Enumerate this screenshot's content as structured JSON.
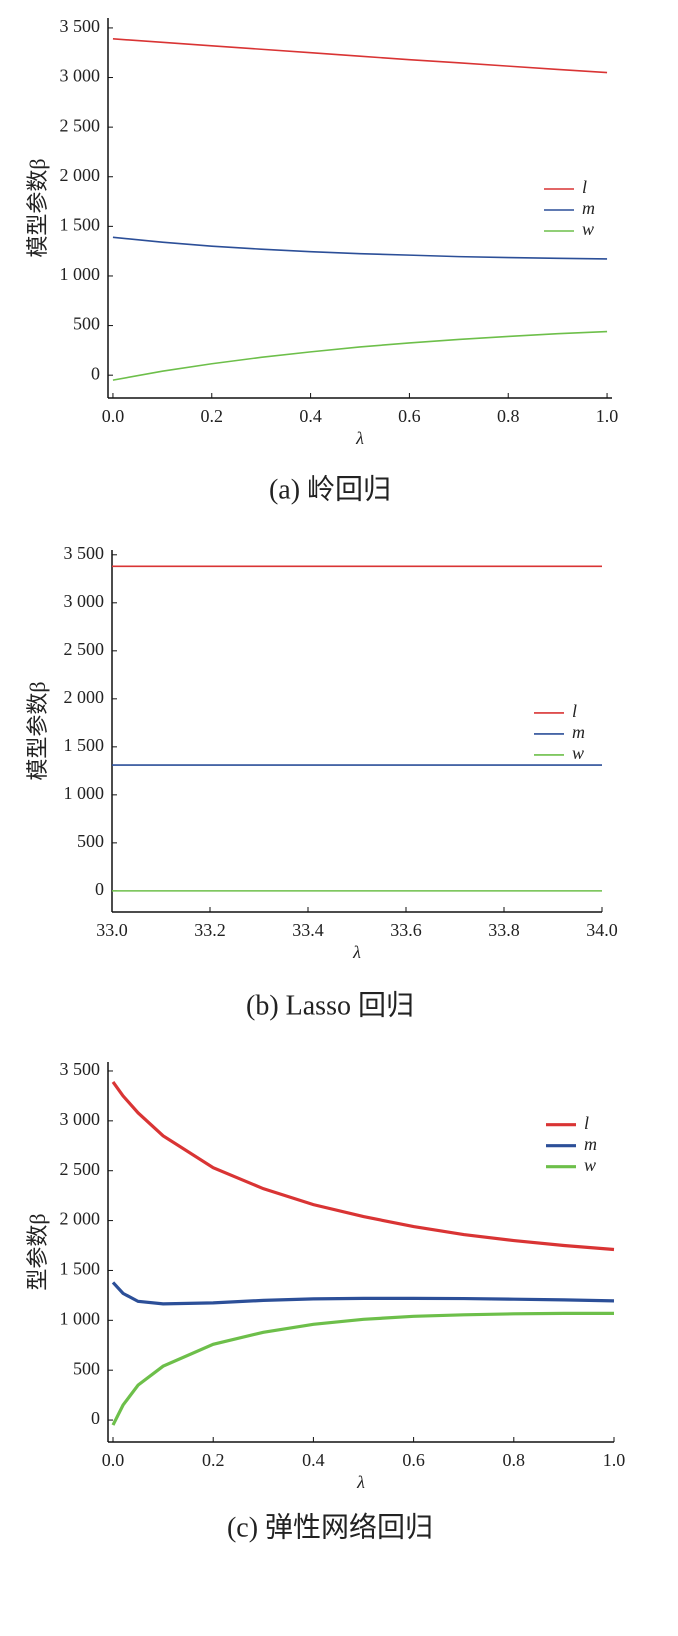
{
  "chart_data": [
    {
      "type": "line",
      "caption": "(a) 岭回归",
      "xlabel": "λ",
      "ylabel": "模型参数β",
      "x": [
        0,
        0.1,
        0.2,
        0.3,
        0.4,
        0.5,
        0.6,
        0.7,
        0.8,
        0.9,
        1.0
      ],
      "series": [
        {
          "name": "l",
          "color": "#d93434",
          "values": [
            3390,
            3355,
            3320,
            3285,
            3250,
            3215,
            3180,
            3148,
            3115,
            3082,
            3050
          ]
        },
        {
          "name": "m",
          "color": "#2c4f98",
          "values": [
            1390,
            1340,
            1300,
            1270,
            1245,
            1225,
            1210,
            1195,
            1185,
            1178,
            1172
          ]
        },
        {
          "name": "w",
          "color": "#6dbf4a",
          "values": [
            -50,
            40,
            115,
            180,
            235,
            285,
            325,
            360,
            390,
            418,
            440
          ]
        }
      ],
      "xlim": [
        -0.01,
        1.01
      ],
      "xticks": [
        {
          "value": 0,
          "label": "0.0"
        },
        0.2,
        0.4,
        0.6,
        0.8,
        {
          "value": 1,
          "label": "1.0"
        }
      ],
      "ylim": [
        -230,
        3600
      ],
      "yticks": [
        0,
        500,
        {
          "value": 1000,
          "label": "1 000"
        },
        {
          "value": 1500,
          "label": "1 500"
        },
        {
          "value": 2000,
          "label": "2 000"
        },
        {
          "value": 2500,
          "label": "2 500"
        },
        {
          "value": 3000,
          "label": "3 000"
        },
        {
          "value": 3500,
          "label": "3 500"
        }
      ],
      "legend": "center right",
      "linewidth": 1.6
    },
    {
      "type": "line",
      "caption": "(b) Lasso 回归",
      "xlabel": "λ",
      "ylabel": "模型参数β",
      "x": [
        33,
        34
      ],
      "series": [
        {
          "name": "l",
          "color": "#d93434",
          "values": [
            3380,
            3380
          ]
        },
        {
          "name": "m",
          "color": "#2c4f98",
          "values": [
            1310,
            1310
          ]
        },
        {
          "name": "w",
          "color": "#6dbf4a",
          "values": [
            0,
            0
          ]
        }
      ],
      "xlim": [
        33,
        34
      ],
      "xticks": [
        {
          "value": 33,
          "label": "33.0"
        },
        33.2,
        33.4,
        33.6,
        33.8,
        {
          "value": 34,
          "label": "34.0"
        }
      ],
      "ylim": [
        -220,
        3550
      ],
      "yticks": [
        0,
        500,
        {
          "value": 1000,
          "label": "1 000"
        },
        {
          "value": 1500,
          "label": "1 500"
        },
        {
          "value": 2000,
          "label": "2 000"
        },
        {
          "value": 2500,
          "label": "2 500"
        },
        {
          "value": 3000,
          "label": "3 000"
        },
        {
          "value": 3500,
          "label": "3 500"
        }
      ],
      "legend": "center right",
      "linewidth": 1.6
    },
    {
      "type": "line",
      "caption": "(c) 弹性网络回归",
      "xlabel": "λ",
      "ylabel": "型参数β",
      "x": [
        0,
        0.02,
        0.05,
        0.1,
        0.2,
        0.3,
        0.4,
        0.5,
        0.6,
        0.7,
        0.8,
        0.9,
        1.0
      ],
      "series": [
        {
          "name": "l",
          "color": "#d93434",
          "values": [
            3390,
            3250,
            3080,
            2850,
            2530,
            2320,
            2160,
            2040,
            1940,
            1860,
            1800,
            1750,
            1710
          ]
        },
        {
          "name": "m",
          "color": "#2c4f98",
          "values": [
            1380,
            1270,
            1190,
            1165,
            1175,
            1200,
            1215,
            1220,
            1220,
            1218,
            1212,
            1205,
            1195
          ]
        },
        {
          "name": "w",
          "color": "#6dbf4a",
          "values": [
            -50,
            150,
            350,
            540,
            760,
            880,
            960,
            1010,
            1040,
            1055,
            1065,
            1070,
            1070
          ]
        }
      ],
      "xlim": [
        -0.01,
        1.0
      ],
      "xticks": [
        {
          "value": 0,
          "label": "0.0"
        },
        0.2,
        0.4,
        0.6,
        0.8,
        {
          "value": 1,
          "label": "1.0"
        }
      ],
      "ylim": [
        -220,
        3590
      ],
      "yticks": [
        0,
        500,
        {
          "value": 1000,
          "label": "1 000"
        },
        {
          "value": 1500,
          "label": "1 500"
        },
        {
          "value": 2000,
          "label": "2 000"
        },
        {
          "value": 2500,
          "label": "2 500"
        },
        {
          "value": 3000,
          "label": "3 000"
        },
        {
          "value": 3500,
          "label": "3 500"
        }
      ],
      "legend": "upper right",
      "linewidth": 3.2
    }
  ]
}
